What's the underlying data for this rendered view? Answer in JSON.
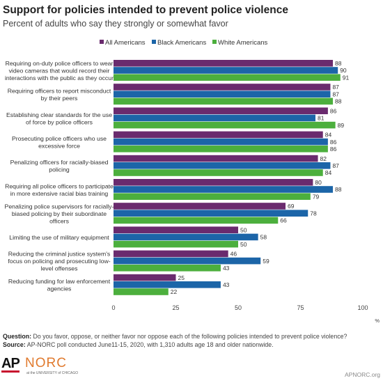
{
  "title": "Support for policies intended to prevent police violence",
  "subtitle": "Percent of adults who say they strongly or somewhat favor",
  "chart_data": {
    "type": "bar",
    "orientation": "horizontal",
    "categories": [
      [
        "Requiring on-duty police officers to wear",
        "video cameras that would record their",
        "interactions with the public as they occur"
      ],
      [
        "Requiring officers to report misconduct",
        "by their peers"
      ],
      [
        "Establishing clear standards for the use",
        "of force by police officers"
      ],
      [
        "Prosecuting police officers who use",
        "excessive force"
      ],
      [
        "Penalizing officers for racially-biased",
        "policing"
      ],
      [
        "Requiring all police officers to participate",
        "in more extensive racial bias training"
      ],
      [
        "Penalizing police supervisors for racially-",
        "biased policing by their subordinate",
        "officers"
      ],
      [
        "Limiting the use of military equipment"
      ],
      [
        "Reducing the criminal justice system's",
        "focus on policing and prosecuting low-",
        "level offenses"
      ],
      [
        "Reducing funding for law enforcement",
        "agencies"
      ]
    ],
    "series": [
      {
        "name": "All Americans",
        "color": "#6a2b6e",
        "values": [
          88,
          87,
          86,
          84,
          82,
          80,
          69,
          50,
          46,
          25
        ]
      },
      {
        "name": "Black Americans",
        "color": "#1c65a8",
        "values": [
          90,
          87,
          81,
          86,
          87,
          88,
          78,
          58,
          59,
          43
        ]
      },
      {
        "name": "White Americans",
        "color": "#4caf3d",
        "values": [
          91,
          88,
          89,
          86,
          84,
          79,
          66,
          50,
          43,
          22
        ]
      }
    ],
    "xlim": [
      0,
      100
    ],
    "xticks": [
      0,
      25,
      50,
      75,
      100
    ],
    "xunit": "%",
    "legend_position": "top",
    "grid": false
  },
  "footnotes": {
    "question_label": "Question:",
    "question_text": "Do you favor, oppose, or neither favor nor oppose each of the following policies  intended to prevent police violence?",
    "source_label": "Source:",
    "source_text": "AP-NORC poll conducted June11-15, 2020, with 1,310 adults age 18 and older nationwide."
  },
  "logos": {
    "ap": "AP",
    "norc": "NORC",
    "norc_sub": "at the UNIVERSITY of CHICAGO"
  },
  "site": "APNORC.org"
}
